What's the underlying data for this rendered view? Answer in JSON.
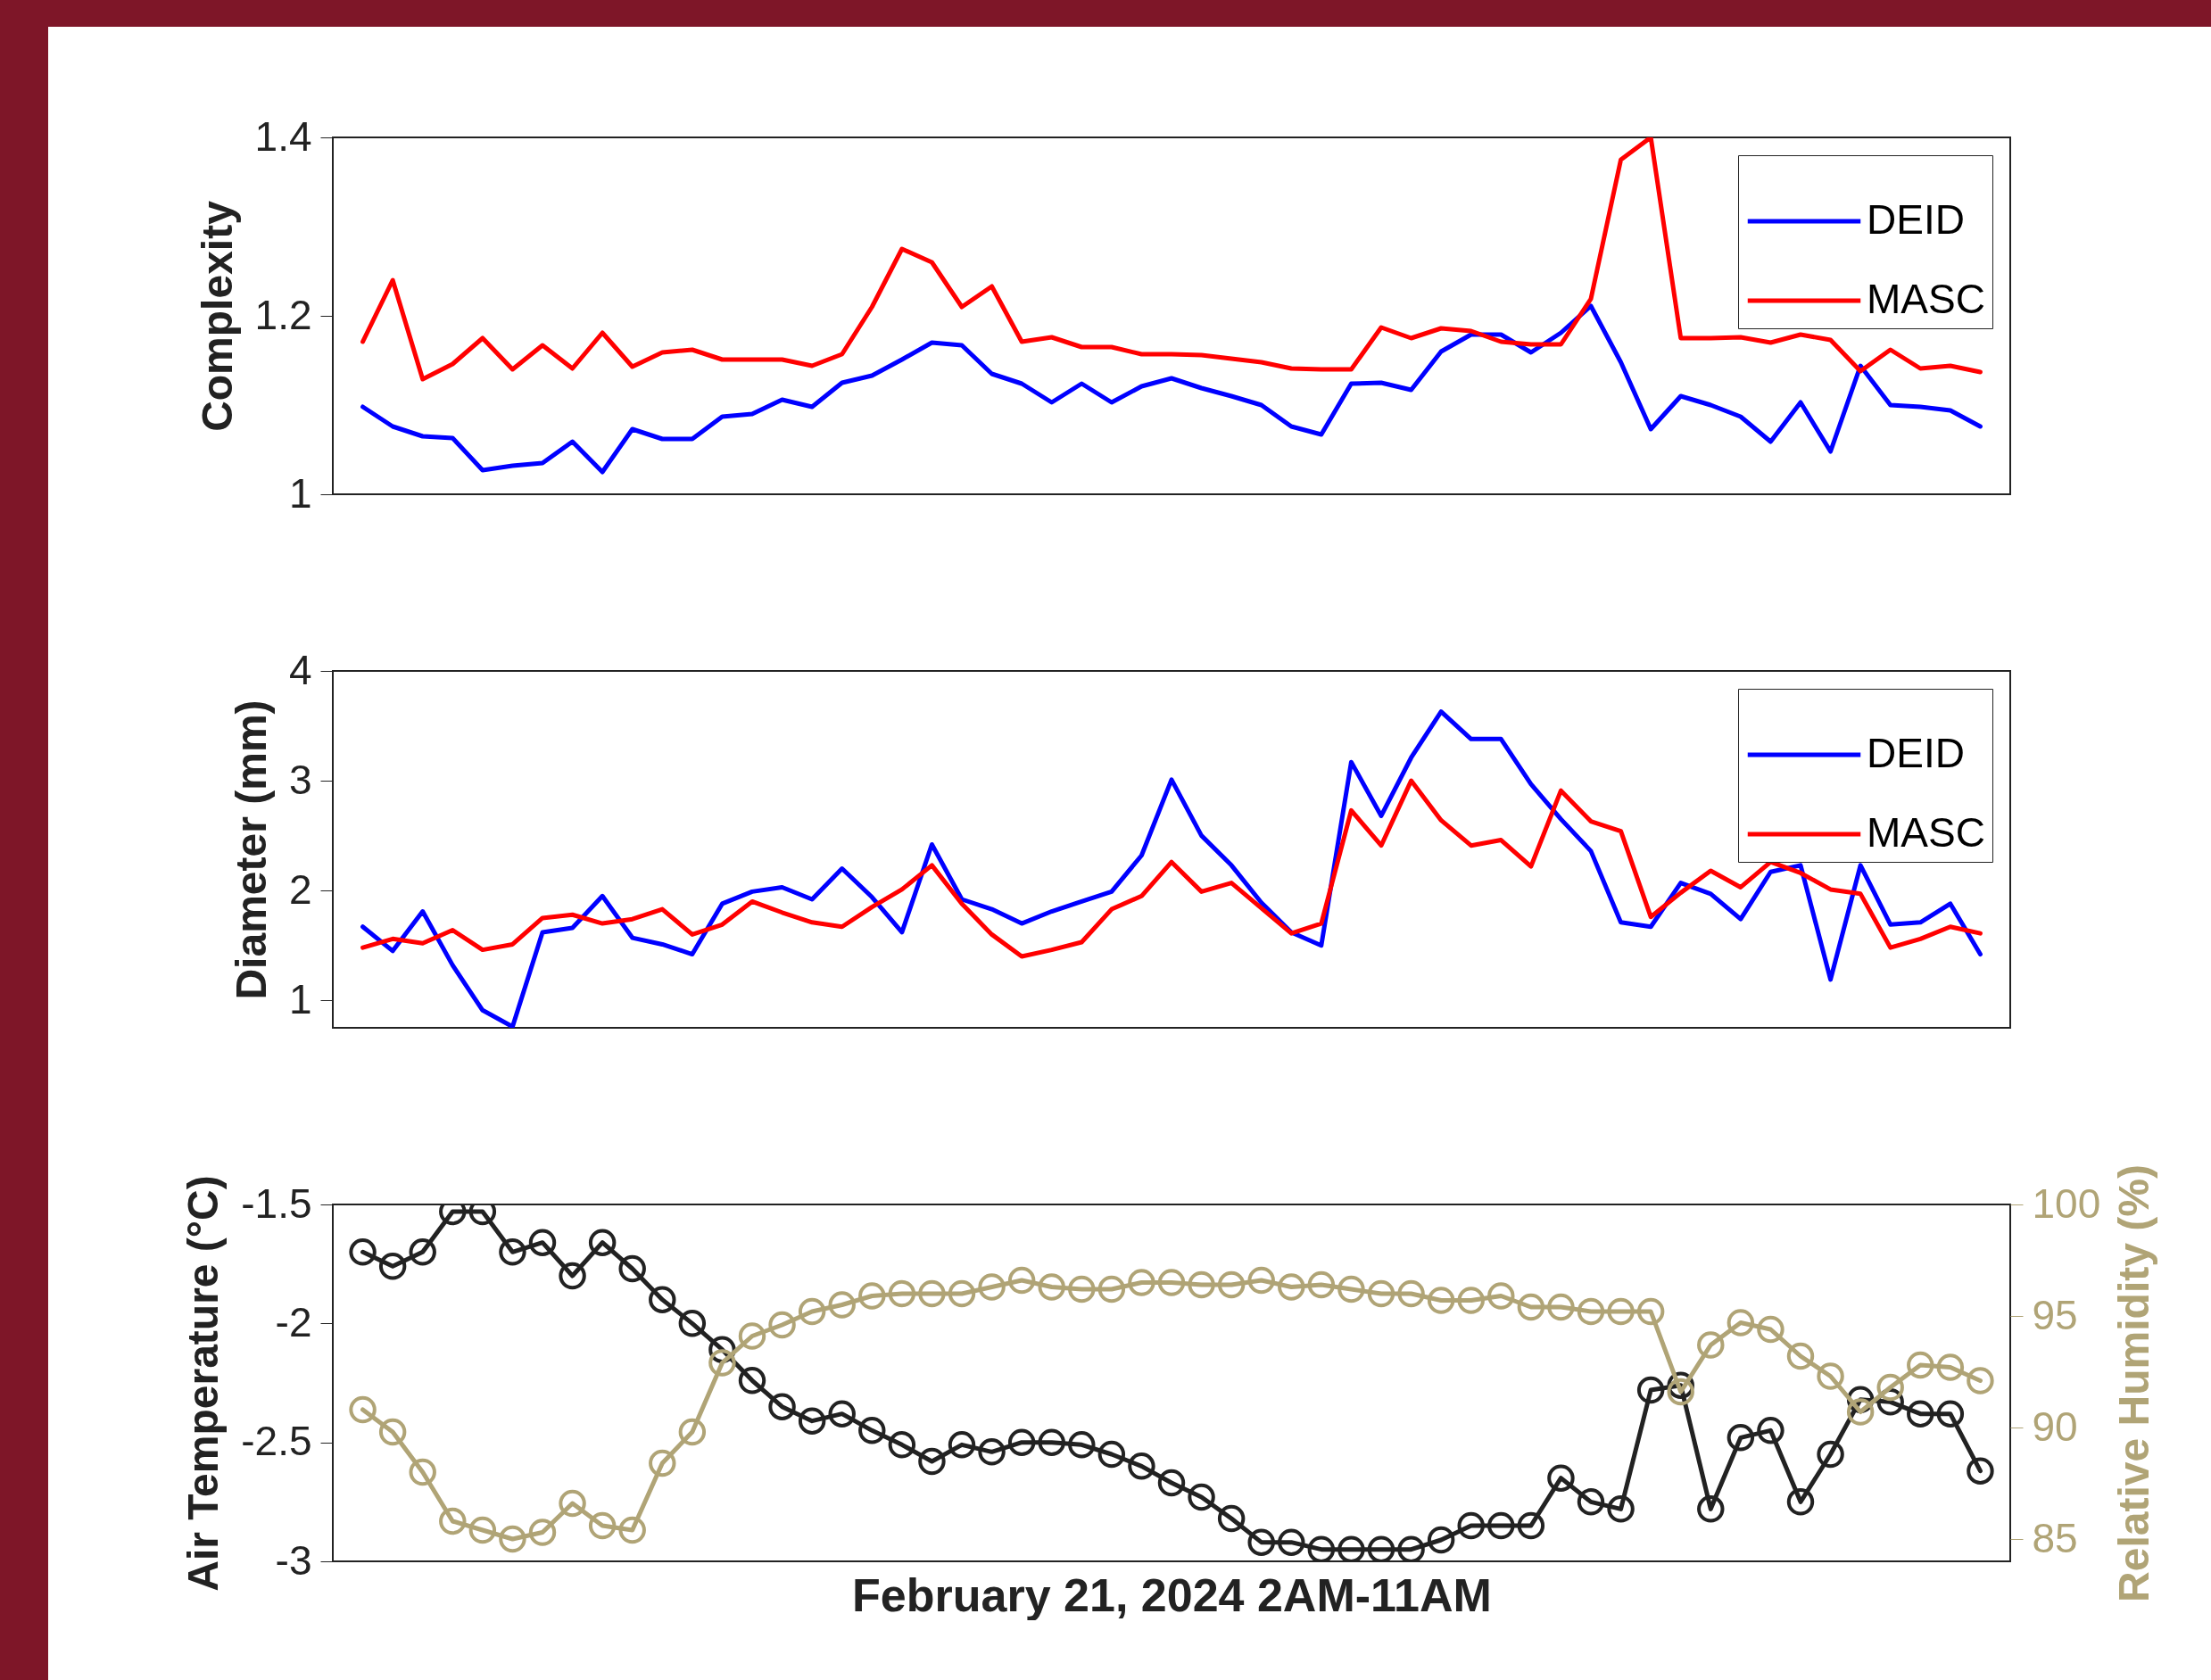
{
  "chart_data": [
    {
      "type": "line",
      "ylabel": "Complexity",
      "categories": [
        null,
        null,
        null,
        null,
        null,
        null,
        null,
        null,
        null,
        null,
        null,
        null,
        null,
        null,
        null,
        null,
        null,
        null,
        null,
        null,
        null,
        null,
        null,
        null,
        null,
        null,
        null,
        null,
        null,
        null,
        null,
        null,
        null,
        null,
        null,
        null,
        null,
        null,
        null,
        null,
        null,
        null,
        null,
        null,
        null,
        null,
        null,
        null,
        null,
        null,
        null,
        null,
        null,
        null,
        null
      ],
      "ylim": [
        1,
        1.4
      ],
      "yticks": [
        1,
        1.2,
        1.4
      ],
      "legend": "top right",
      "series": [
        {
          "name": "DEID",
          "color": "#0000ff",
          "values": [
            1.098,
            1.076,
            1.065,
            1.063,
            1.027,
            1.032,
            1.035,
            1.059,
            1.025,
            1.073,
            1.062,
            1.062,
            1.087,
            1.09,
            1.106,
            1.098,
            1.125,
            1.133,
            1.151,
            1.17,
            1.167,
            1.135,
            1.124,
            1.103,
            1.124,
            1.103,
            1.121,
            1.13,
            1.119,
            1.11,
            1.1,
            1.076,
            1.067,
            1.124,
            1.125,
            1.117,
            1.16,
            1.179,
            1.179,
            1.159,
            1.181,
            1.211,
            1.148,
            1.073,
            1.11,
            1.1,
            1.087,
            1.059,
            1.103,
            1.048,
            1.144,
            1.1,
            1.098,
            1.094,
            1.076
          ]
        },
        {
          "name": "MASC",
          "color": "#ff0000",
          "values": [
            1.171,
            1.24,
            1.129,
            1.146,
            1.175,
            1.14,
            1.167,
            1.141,
            1.181,
            1.143,
            1.159,
            1.162,
            1.151,
            1.151,
            1.151,
            1.144,
            1.157,
            1.21,
            1.275,
            1.26,
            1.21,
            1.233,
            1.171,
            1.176,
            1.165,
            1.165,
            1.157,
            1.157,
            1.156,
            1.152,
            1.148,
            1.141,
            1.14,
            1.14,
            1.187,
            1.175,
            1.186,
            1.183,
            1.171,
            1.168,
            1.168,
            1.219,
            1.375,
            1.4,
            1.175,
            1.175,
            1.176,
            1.17,
            1.179,
            1.173,
            1.138,
            1.162,
            1.141,
            1.144,
            1.137
          ]
        }
      ]
    },
    {
      "type": "line",
      "ylabel": "Diameter (mm)",
      "categories": [
        null,
        null,
        null,
        null,
        null,
        null,
        null,
        null,
        null,
        null,
        null,
        null,
        null,
        null,
        null,
        null,
        null,
        null,
        null,
        null,
        null,
        null,
        null,
        null,
        null,
        null,
        null,
        null,
        null,
        null,
        null,
        null,
        null,
        null,
        null,
        null,
        null,
        null,
        null,
        null,
        null,
        null,
        null,
        null,
        null,
        null,
        null,
        null,
        null,
        null,
        null,
        null,
        null,
        null,
        null
      ],
      "ylim": [
        0.75,
        4
      ],
      "yticks": [
        1,
        2,
        3,
        4
      ],
      "legend": "top right",
      "series": [
        {
          "name": "DEID",
          "color": "#0000ff",
          "values": [
            1.67,
            1.45,
            1.81,
            1.32,
            0.91,
            0.76,
            1.62,
            1.66,
            1.95,
            1.57,
            1.51,
            1.42,
            1.88,
            1.99,
            2.03,
            1.92,
            2.2,
            1.94,
            1.62,
            2.42,
            1.92,
            1.83,
            1.7,
            1.81,
            1.9,
            1.99,
            2.32,
            3.01,
            2.5,
            2.23,
            1.89,
            1.62,
            1.5,
            3.17,
            2.68,
            3.21,
            3.63,
            3.38,
            3.38,
            2.97,
            2.65,
            2.36,
            1.71,
            1.67,
            2.07,
            1.97,
            1.74,
            2.17,
            2.23,
            1.19,
            2.23,
            1.69,
            1.71,
            1.88,
            1.42
          ]
        },
        {
          "name": "MASC",
          "color": "#ff0000",
          "values": [
            1.48,
            1.56,
            1.52,
            1.64,
            1.46,
            1.51,
            1.75,
            1.78,
            1.7,
            1.74,
            1.83,
            1.6,
            1.69,
            1.9,
            1.8,
            1.71,
            1.67,
            1.85,
            2.01,
            2.23,
            1.88,
            1.6,
            1.4,
            1.46,
            1.53,
            1.83,
            1.95,
            2.26,
            1.99,
            2.07,
            1.84,
            1.61,
            1.7,
            2.73,
            2.41,
            3,
            2.64,
            2.41,
            2.46,
            2.22,
            2.91,
            2.63,
            2.54,
            1.76,
            1.98,
            2.18,
            2.03,
            2.26,
            2.16,
            2.01,
            1.97,
            1.48,
            1.56,
            1.67,
            1.61
          ]
        }
      ]
    },
    {
      "type": "line",
      "xlabel": "February 21, 2024 2AM-11AM",
      "ylabel": "Air Temperature (°C)",
      "y2label": "Relative Humidity (%)",
      "categories": [
        null,
        null,
        null,
        null,
        null,
        null,
        null,
        null,
        null,
        null,
        null,
        null,
        null,
        null,
        null,
        null,
        null,
        null,
        null,
        null,
        null,
        null,
        null,
        null,
        null,
        null,
        null,
        null,
        null,
        null,
        null,
        null,
        null,
        null,
        null,
        null,
        null,
        null,
        null,
        null,
        null,
        null,
        null,
        null,
        null,
        null,
        null,
        null,
        null,
        null,
        null,
        null,
        null,
        null,
        null
      ],
      "ylim": [
        -3,
        -1.5
      ],
      "yticks": [
        -3,
        -2.5,
        -2,
        -1.5
      ],
      "y2lim": [
        84,
        100
      ],
      "y2ticks": [
        85,
        90,
        95,
        100
      ],
      "marker": "circle",
      "series": [
        {
          "color": "#222222",
          "values": [
            -1.7,
            -1.76,
            -1.7,
            -1.53,
            -1.53,
            -1.7,
            -1.66,
            -1.8,
            -1.66,
            -1.77,
            -1.9,
            -2,
            -2.11,
            -2.24,
            -2.35,
            -2.41,
            -2.38,
            -2.45,
            -2.51,
            -2.58,
            -2.51,
            -2.54,
            -2.5,
            -2.5,
            -2.51,
            -2.55,
            -2.6,
            -2.67,
            -2.73,
            -2.82,
            -2.92,
            -2.92,
            -2.95,
            -2.95,
            -2.95,
            -2.95,
            -2.91,
            -2.85,
            -2.85,
            -2.85,
            -2.65,
            -2.75,
            -2.78,
            -2.28,
            -2.26,
            -2.78,
            -2.48,
            -2.45,
            -2.75,
            -2.55,
            -2.32,
            -2.33,
            -2.38,
            -2.38,
            -2.62
          ]
        },
        {
          "color": "#b0a476",
          "axis": "y2",
          "values": [
            90.8,
            89.8,
            88,
            85.8,
            85.4,
            85,
            85.3,
            86.6,
            85.6,
            85.4,
            88.4,
            89.8,
            92.9,
            94.1,
            94.6,
            95.2,
            95.5,
            95.9,
            96,
            96,
            96,
            96.3,
            96.6,
            96.3,
            96.2,
            96.2,
            96.5,
            96.5,
            96.4,
            96.4,
            96.6,
            96.3,
            96.4,
            96.2,
            96,
            96,
            95.7,
            95.7,
            95.9,
            95.4,
            95.4,
            95.2,
            95.2,
            95.2,
            91.6,
            93.7,
            94.7,
            94.4,
            93.2,
            92.3,
            90.7,
            91.8,
            92.8,
            92.7,
            92.1
          ]
        }
      ]
    }
  ]
}
